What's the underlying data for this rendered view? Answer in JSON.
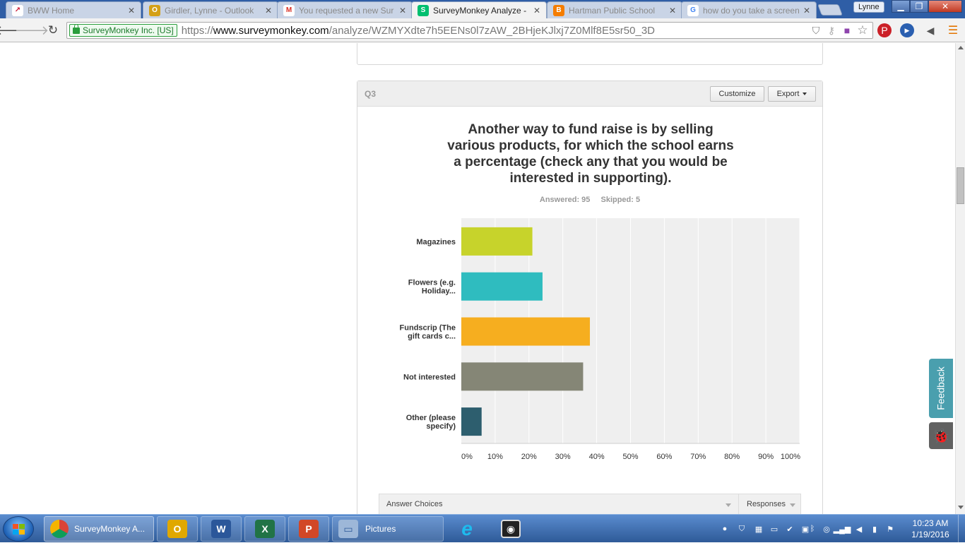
{
  "browser": {
    "tabs": [
      {
        "label": "BWW Home",
        "favicon": "bww-icon",
        "color": "#c8102e",
        "glyph": "↗"
      },
      {
        "label": "Girdler, Lynne - Outlook",
        "favicon": "outlook-icon",
        "color": "#d4a017",
        "glyph": "O"
      },
      {
        "label": "You requested a new Sur",
        "favicon": "gmail-icon",
        "color": "#d93025",
        "glyph": "M"
      },
      {
        "label": "SurveyMonkey Analyze - I",
        "favicon": "surveymonkey-icon",
        "color": "#00bf6f",
        "glyph": "S"
      },
      {
        "label": "Hartman Public School",
        "favicon": "blogger-icon",
        "color": "#f57d00",
        "glyph": "B"
      },
      {
        "label": "how do you take a screen",
        "favicon": "google-icon",
        "color": "#4285f4",
        "glyph": "G"
      }
    ],
    "profile_name": "Lynne",
    "ev_label": "SurveyMonkey Inc. [US]",
    "url_scheme": "https://",
    "url_host": "www.surveymonkey.com",
    "url_path": "/analyze/WZMYXdte7h5EENs0l7zAW_2BHjeKJlxj7Z0Mlf8E5sr50_3D"
  },
  "question": {
    "number": "Q3",
    "customize_label": "Customize",
    "export_label": "Export",
    "title": "Another way to fund raise is by selling various products, for which the school earns a percentage (check any that you would be interested in supporting).",
    "answered": "Answered: 95",
    "skipped": "Skipped: 5"
  },
  "chart_data": {
    "type": "bar",
    "orientation": "horizontal",
    "categories": [
      "Magazines",
      "Flowers (e.g. Holiday...",
      "Fundscrip (The gift cards c...",
      "Not interested",
      "Other (please specify)"
    ],
    "values": [
      21,
      24,
      38,
      36,
      6
    ],
    "colors": [
      "#c7d32b",
      "#2fbcbf",
      "#f6ae1f",
      "#858676",
      "#2d5e6e"
    ],
    "xlim": [
      0,
      100
    ],
    "x_ticks": [
      "0%",
      "10%",
      "20%",
      "30%",
      "40%",
      "50%",
      "60%",
      "70%",
      "80%",
      "90%",
      "100%"
    ],
    "grid": true
  },
  "table": {
    "col_choices": "Answer Choices",
    "col_responses": "Responses"
  },
  "page_side": {
    "feedback_label": "Feedback"
  },
  "taskbar": {
    "items": [
      {
        "label": "SurveyMonkey A...",
        "icon": "chrome-icon"
      },
      {
        "label": "",
        "icon": "outlook-icon"
      },
      {
        "label": "",
        "icon": "word-icon"
      },
      {
        "label": "",
        "icon": "excel-icon"
      },
      {
        "label": "",
        "icon": "powerpoint-icon"
      },
      {
        "label": "Pictures",
        "icon": "folder-icon"
      },
      {
        "label": "",
        "icon": "internet-explorer-icon"
      },
      {
        "label": "",
        "icon": "eye-icon"
      }
    ],
    "clock_time": "10:23 AM",
    "clock_date": "1/19/2016"
  }
}
